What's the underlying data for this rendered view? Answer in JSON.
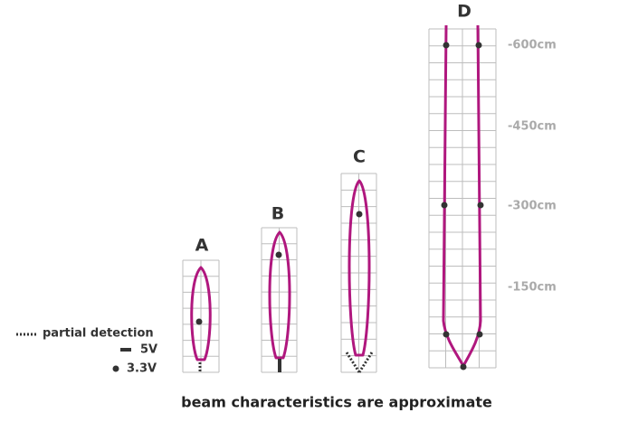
{
  "beams": [
    {
      "label": "A"
    },
    {
      "label": "B"
    },
    {
      "label": "C"
    },
    {
      "label": "D"
    }
  ],
  "scale": [
    "-600cm",
    "-450cm",
    "-300cm",
    "-150cm"
  ],
  "legend": [
    "partial detection",
    "5V",
    "3.3V"
  ],
  "caption": "beam characteristics are approximate"
}
